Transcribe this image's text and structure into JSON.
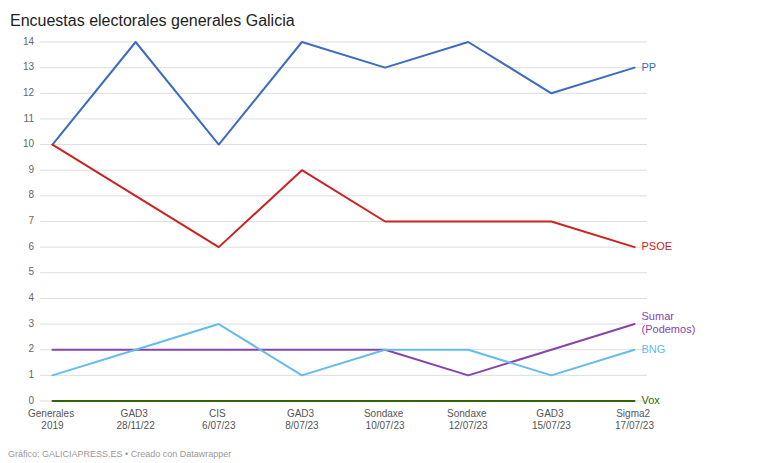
{
  "chart_data": {
    "type": "line",
    "title": "Encuestas electorales generales Galicia",
    "categories": [
      "Generales 2019",
      "GAD3 28/11/22",
      "CIS 6/07/23",
      "GAD3 8/07/23",
      "Sondaxe 10/07/23",
      "Sondaxe 12/07/23",
      "GAD3 15/07/23",
      "Sigma2 17/07/23"
    ],
    "series": [
      {
        "name": "PP",
        "color": "#3d6cbf",
        "values": [
          10,
          14,
          10,
          14,
          13,
          14,
          12,
          13
        ]
      },
      {
        "name": "PSOE",
        "color": "#cc2222",
        "values": [
          10,
          8,
          6,
          9,
          7,
          7,
          7,
          6
        ]
      },
      {
        "name": "Sumar\n(Podemos)",
        "color": "#8844aa",
        "values": [
          2,
          2,
          2,
          2,
          2,
          1,
          2,
          3
        ]
      },
      {
        "name": "BNG",
        "color": "#66bbee",
        "values": [
          1,
          2,
          3,
          1,
          2,
          2,
          1,
          2
        ]
      },
      {
        "name": "Vox",
        "color": "#336600",
        "values": [
          0,
          0,
          0,
          0,
          0,
          0,
          0,
          0
        ]
      }
    ],
    "ylim": [
      0,
      14
    ],
    "yticks": [
      0,
      1,
      2,
      3,
      4,
      5,
      6,
      7,
      8,
      9,
      10,
      11,
      12,
      13,
      14
    ],
    "grid": true,
    "annotations": [
      "Gráfico: GALICIAPRESS.ES • Creado con Datawrapper"
    ]
  }
}
